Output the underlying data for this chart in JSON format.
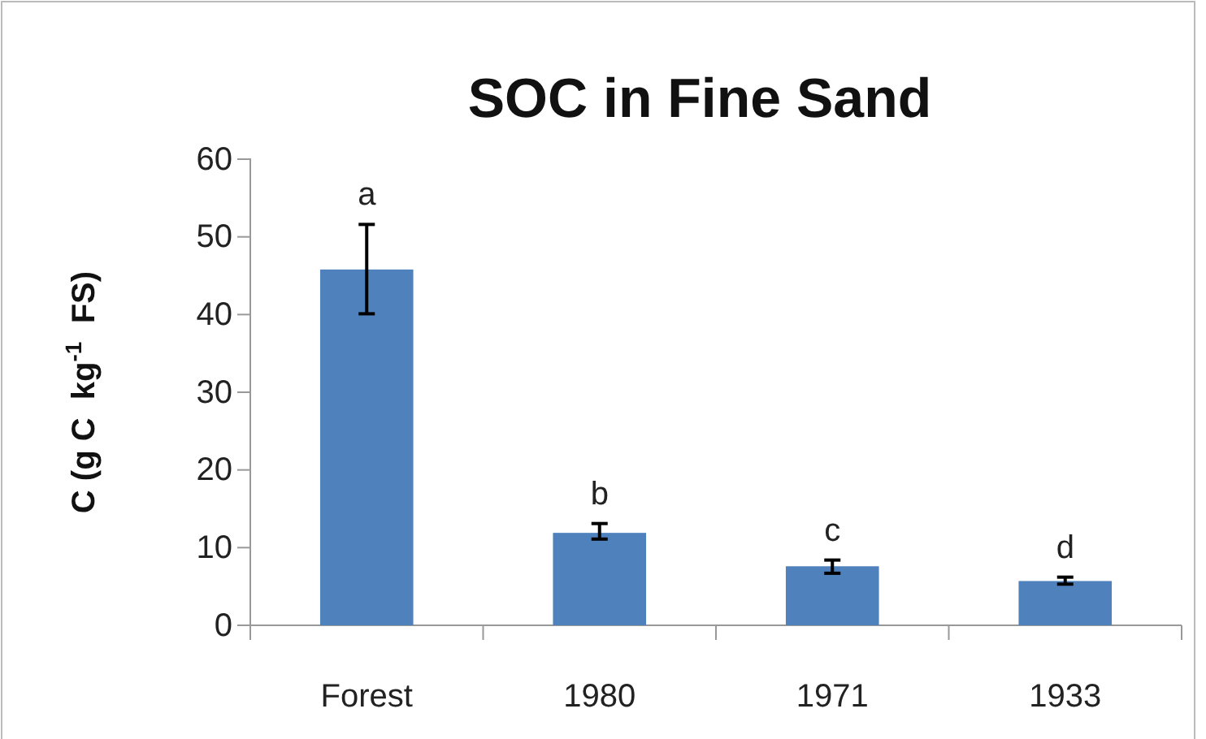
{
  "chart_data": {
    "type": "bar",
    "title": "SOC in Fine Sand",
    "ylabel": "C (g C  kg$^{-1}$  FS)",
    "categories": [
      "Forest",
      "1980",
      "1971",
      "1933"
    ],
    "values": [
      45.8,
      11.9,
      7.6,
      5.7
    ],
    "errors": [
      [
        40.1,
        51.6
      ],
      [
        11.1,
        13.1
      ],
      [
        6.7,
        8.4
      ],
      [
        5.3,
        6.2
      ]
    ],
    "color": "#4f81bd",
    "ylim": [
      0,
      60
    ],
    "yticks": [
      0,
      10,
      20,
      30,
      40,
      50,
      60
    ],
    "grid": false,
    "annotations": [
      "a",
      "b",
      "c",
      "d"
    ]
  }
}
